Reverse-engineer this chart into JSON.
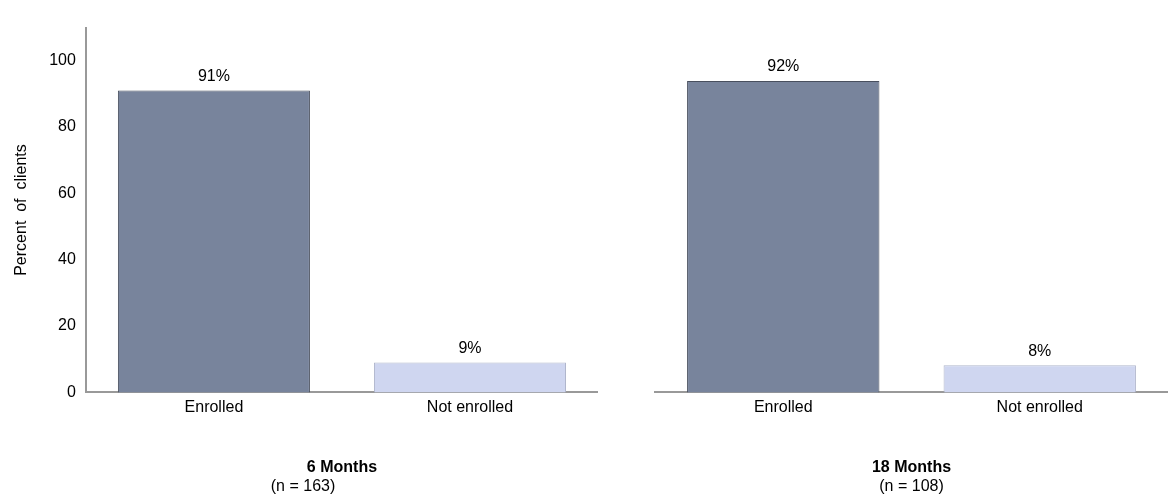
{
  "chart_data": [
    {
      "type": "bar",
      "categories": [
        "Enrolled",
        "Not enrolled"
      ],
      "values": [
        91,
        9
      ],
      "colors": [
        "#78849c",
        "#cfd6f0"
      ],
      "value_labels": [
        "91%",
        "9%"
      ],
      "ylabel": "Percent  of  clients",
      "xlabel": "6 Months",
      "annotations": [
        "(n = 163)"
      ],
      "ylim": [
        0,
        110
      ],
      "yticks": [
        0,
        20,
        40,
        60,
        80,
        100
      ],
      "grid": false,
      "legend": false
    },
    {
      "type": "bar",
      "categories": [
        "Enrolled",
        "Not enrolled"
      ],
      "values": [
        92,
        8
      ],
      "colors": [
        "#78849c",
        "#cfd6f0"
      ],
      "value_labels": [
        "92%",
        "8%"
      ],
      "xlabel": "18 Months",
      "annotations": [
        "(n = 108)"
      ],
      "tick_labels": "x",
      "grid": false,
      "legend": false
    }
  ]
}
